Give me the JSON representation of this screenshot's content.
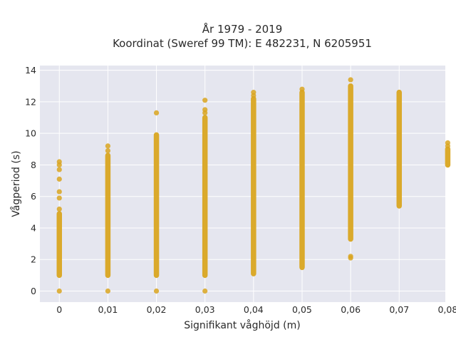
{
  "chart_data": {
    "type": "scatter",
    "title_line1": "År 1979 - 2019",
    "title_line2": "Koordinat (Sweref 99 TM): E 482231, N 6205951",
    "xlabel": "Signifikant våghöjd (m)",
    "ylabel": "Vågperiod (s)",
    "x_ticks": [
      "0",
      "0,01",
      "0,02",
      "0,03",
      "0,04",
      "0,05",
      "0,06",
      "0,07",
      "0,08"
    ],
    "y_ticks": [
      "0",
      "2",
      "4",
      "6",
      "8",
      "10",
      "12",
      "14"
    ],
    "xlim": [
      -0.004,
      0.0795
    ],
    "ylim": [
      -0.7,
      14.3
    ],
    "grid": true,
    "marker_color": "#d9a520",
    "plot_background": "#e5e6ef",
    "series": [
      {
        "columns": [
          {
            "x": 0.0,
            "range": [
              1.0,
              4.9
            ],
            "outliers": [
              0.0,
              5.2,
              5.9,
              6.3,
              7.1,
              7.7,
              8.0,
              8.2
            ]
          },
          {
            "x": 0.01,
            "range": [
              1.0,
              8.6
            ],
            "outliers": [
              0.0,
              8.9,
              9.2
            ]
          },
          {
            "x": 0.02,
            "range": [
              1.0,
              9.9
            ],
            "outliers": [
              0.0,
              11.3
            ]
          },
          {
            "x": 0.03,
            "range": [
              1.0,
              11.0
            ],
            "outliers": [
              0.0,
              11.3,
              11.5,
              12.1
            ]
          },
          {
            "x": 0.04,
            "range": [
              1.1,
              12.2
            ],
            "outliers": [
              12.4,
              12.6
            ]
          },
          {
            "x": 0.05,
            "range": [
              1.5,
              12.6
            ],
            "outliers": [
              12.8
            ]
          },
          {
            "x": 0.06,
            "range": [
              3.3,
              13.0
            ],
            "outliers": [
              2.1,
              2.2,
              13.4
            ]
          },
          {
            "x": 0.07,
            "range": [
              5.4,
              12.6
            ],
            "outliers": []
          },
          {
            "x": 0.08,
            "range": [
              8.0,
              9.0
            ],
            "outliers": [
              9.2,
              9.4
            ]
          }
        ]
      }
    ]
  }
}
